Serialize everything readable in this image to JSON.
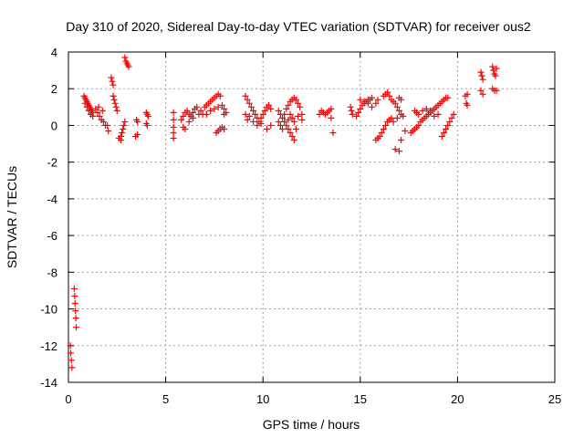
{
  "chart_data": {
    "type": "scatter",
    "title": "Day 310 of 2020, Sidereal Day-to-day VTEC variation (SDTVAR) for receiver ous2",
    "xlabel": "GPS time / hours",
    "ylabel": "SDTVAR / TECUs",
    "xlim": [
      0,
      25
    ],
    "ylim": [
      -14,
      4
    ],
    "xticks": [
      0,
      5,
      10,
      15,
      20,
      25
    ],
    "yticks": [
      -14,
      -12,
      -10,
      -8,
      -6,
      -4,
      -2,
      0,
      2,
      4
    ],
    "grid": true,
    "marker": "+",
    "series": [
      {
        "name": "SDTVAR",
        "color": "#ff0000",
        "points": [
          [
            0.1,
            -12.0
          ],
          [
            0.12,
            -12.4
          ],
          [
            0.15,
            -12.8
          ],
          [
            0.18,
            -13.2
          ],
          [
            0.3,
            -8.9
          ],
          [
            0.32,
            -9.3
          ],
          [
            0.34,
            -9.7
          ],
          [
            0.36,
            -10.1
          ],
          [
            0.38,
            -10.5
          ],
          [
            0.4,
            -11.0
          ],
          [
            0.8,
            1.6
          ],
          [
            0.85,
            1.5
          ],
          [
            0.9,
            1.4
          ],
          [
            0.95,
            1.3
          ],
          [
            1.0,
            1.2
          ],
          [
            1.05,
            1.1
          ],
          [
            1.1,
            1.0
          ],
          [
            1.15,
            0.9
          ],
          [
            1.2,
            0.8
          ],
          [
            1.25,
            0.7
          ],
          [
            0.85,
            1.2
          ],
          [
            0.95,
            1.0
          ],
          [
            1.05,
            0.8
          ],
          [
            1.15,
            0.6
          ],
          [
            1.25,
            0.5
          ],
          [
            1.4,
            0.9
          ],
          [
            1.5,
            0.7
          ],
          [
            1.6,
            0.5
          ],
          [
            1.7,
            0.3
          ],
          [
            1.8,
            0.2
          ],
          [
            1.9,
            0.0
          ],
          [
            1.55,
            1.0
          ],
          [
            1.75,
            0.8
          ],
          [
            2.05,
            -0.3
          ],
          [
            2.0,
            0.0
          ],
          [
            2.2,
            2.6
          ],
          [
            2.25,
            2.4
          ],
          [
            2.3,
            2.2
          ],
          [
            2.3,
            1.6
          ],
          [
            2.35,
            1.4
          ],
          [
            2.4,
            1.2
          ],
          [
            2.45,
            1.0
          ],
          [
            2.5,
            0.8
          ],
          [
            2.6,
            -0.7
          ],
          [
            2.7,
            -0.6
          ],
          [
            2.75,
            -0.4
          ],
          [
            2.8,
            -0.2
          ],
          [
            2.85,
            0.0
          ],
          [
            2.9,
            0.2
          ],
          [
            2.7,
            -0.8
          ],
          [
            2.9,
            3.7
          ],
          [
            2.95,
            3.5
          ],
          [
            3.0,
            3.4
          ],
          [
            3.05,
            3.3
          ],
          [
            3.1,
            3.2
          ],
          [
            3.5,
            0.3
          ],
          [
            3.55,
            0.2
          ],
          [
            3.45,
            -0.6
          ],
          [
            3.55,
            -0.5
          ],
          [
            4.0,
            0.7
          ],
          [
            4.05,
            0.6
          ],
          [
            4.1,
            0.5
          ],
          [
            4.0,
            0.1
          ],
          [
            4.05,
            0.0
          ],
          [
            5.4,
            0.7
          ],
          [
            5.4,
            0.3
          ],
          [
            5.4,
            -0.1
          ],
          [
            5.4,
            -0.4
          ],
          [
            5.4,
            -0.7
          ],
          [
            5.8,
            0.3
          ],
          [
            5.9,
            0.5
          ],
          [
            6.0,
            0.7
          ],
          [
            6.1,
            0.8
          ],
          [
            6.2,
            0.6
          ],
          [
            6.3,
            0.5
          ],
          [
            6.4,
            0.7
          ],
          [
            6.5,
            0.9
          ],
          [
            6.6,
            1.0
          ],
          [
            5.9,
            -0.1
          ],
          [
            6.0,
            -0.2
          ],
          [
            6.2,
            0.2
          ],
          [
            6.4,
            0.4
          ],
          [
            6.7,
            0.6
          ],
          [
            6.8,
            0.8
          ],
          [
            6.9,
            0.6
          ],
          [
            7.0,
            1.0
          ],
          [
            7.1,
            1.1
          ],
          [
            7.2,
            1.2
          ],
          [
            7.3,
            1.3
          ],
          [
            7.4,
            1.4
          ],
          [
            7.5,
            1.5
          ],
          [
            7.6,
            1.6
          ],
          [
            7.7,
            1.7
          ],
          [
            7.8,
            1.6
          ],
          [
            7.1,
            0.6
          ],
          [
            7.3,
            0.8
          ],
          [
            7.5,
            0.9
          ],
          [
            7.7,
            1.0
          ],
          [
            7.9,
            1.1
          ],
          [
            8.0,
            0.9
          ],
          [
            7.6,
            -0.4
          ],
          [
            7.7,
            -0.3
          ],
          [
            7.8,
            -0.2
          ],
          [
            7.9,
            -0.1
          ],
          [
            8.0,
            -0.2
          ],
          [
            8.0,
            0.6
          ],
          [
            8.1,
            0.7
          ],
          [
            9.1,
            1.6
          ],
          [
            9.2,
            1.4
          ],
          [
            9.3,
            1.2
          ],
          [
            9.4,
            1.0
          ],
          [
            9.5,
            0.8
          ],
          [
            9.6,
            0.6
          ],
          [
            9.7,
            0.4
          ],
          [
            9.8,
            0.2
          ],
          [
            9.9,
            0.4
          ],
          [
            9.1,
            0.6
          ],
          [
            9.2,
            0.3
          ],
          [
            9.3,
            0.5
          ],
          [
            9.5,
            0.2
          ],
          [
            9.7,
            0.0
          ],
          [
            9.9,
            0.1
          ],
          [
            10.0,
            0.6
          ],
          [
            10.1,
            0.8
          ],
          [
            10.2,
            1.0
          ],
          [
            10.3,
            1.1
          ],
          [
            10.4,
            0.9
          ],
          [
            10.2,
            -0.2
          ],
          [
            10.4,
            0.0
          ],
          [
            10.8,
            0.8
          ],
          [
            10.9,
            0.6
          ],
          [
            11.0,
            0.4
          ],
          [
            11.1,
            0.2
          ],
          [
            11.2,
            0.0
          ],
          [
            11.3,
            -0.2
          ],
          [
            11.4,
            -0.4
          ],
          [
            11.5,
            -0.6
          ],
          [
            11.6,
            -0.8
          ],
          [
            10.8,
            0.2
          ],
          [
            10.9,
            0.0
          ],
          [
            11.0,
            -0.2
          ],
          [
            11.1,
            0.6
          ],
          [
            11.2,
            0.9
          ],
          [
            11.3,
            1.1
          ],
          [
            11.4,
            1.3
          ],
          [
            11.5,
            1.4
          ],
          [
            11.6,
            1.5
          ],
          [
            11.7,
            1.4
          ],
          [
            11.8,
            1.2
          ],
          [
            11.9,
            1.0
          ],
          [
            12.0,
            0.6
          ],
          [
            12.0,
            0.3
          ],
          [
            11.5,
            0.4
          ],
          [
            11.6,
            0.2
          ],
          [
            11.7,
            -0.2
          ],
          [
            11.8,
            0.5
          ],
          [
            11.4,
            0.6
          ],
          [
            11.3,
            0.3
          ],
          [
            12.9,
            0.6
          ],
          [
            13.0,
            0.8
          ],
          [
            13.1,
            0.7
          ],
          [
            13.2,
            0.6
          ],
          [
            13.3,
            0.7
          ],
          [
            13.4,
            0.8
          ],
          [
            13.5,
            0.9
          ],
          [
            13.5,
            0.4
          ],
          [
            13.6,
            -0.4
          ],
          [
            14.5,
            1.0
          ],
          [
            14.55,
            0.8
          ],
          [
            14.6,
            0.6
          ],
          [
            14.8,
            0.5
          ],
          [
            14.9,
            0.7
          ],
          [
            15.0,
            0.9
          ],
          [
            15.1,
            1.1
          ],
          [
            15.2,
            1.2
          ],
          [
            15.3,
            1.3
          ],
          [
            15.4,
            1.4
          ],
          [
            15.5,
            1.4
          ],
          [
            15.6,
            1.5
          ],
          [
            15.0,
            1.4
          ],
          [
            15.2,
            1.3
          ],
          [
            15.4,
            1.2
          ],
          [
            15.6,
            1.0
          ],
          [
            15.8,
            1.2
          ],
          [
            15.9,
            1.4
          ],
          [
            16.2,
            1.6
          ],
          [
            16.3,
            1.7
          ],
          [
            16.4,
            1.8
          ],
          [
            16.5,
            1.6
          ],
          [
            16.6,
            1.4
          ],
          [
            16.7,
            1.3
          ],
          [
            16.8,
            1.2
          ],
          [
            16.9,
            1.0
          ],
          [
            17.0,
            0.8
          ],
          [
            17.1,
            0.6
          ],
          [
            15.8,
            -0.8
          ],
          [
            15.9,
            -0.7
          ],
          [
            16.0,
            -0.6
          ],
          [
            16.1,
            -0.4
          ],
          [
            16.2,
            -0.2
          ],
          [
            16.3,
            0.0
          ],
          [
            16.4,
            0.2
          ],
          [
            16.5,
            0.3
          ],
          [
            16.6,
            0.4
          ],
          [
            16.8,
            -1.3
          ],
          [
            17.0,
            -1.4
          ],
          [
            17.1,
            -0.8
          ],
          [
            17.3,
            -0.3
          ],
          [
            16.7,
            0.2
          ],
          [
            16.9,
            0.4
          ],
          [
            17.2,
            0.5
          ],
          [
            17.0,
            1.5
          ],
          [
            17.1,
            1.4
          ],
          [
            17.6,
            -0.4
          ],
          [
            17.7,
            -0.3
          ],
          [
            17.8,
            -0.2
          ],
          [
            17.9,
            -0.1
          ],
          [
            18.0,
            0.0
          ],
          [
            18.1,
            0.2
          ],
          [
            18.2,
            0.3
          ],
          [
            18.3,
            0.4
          ],
          [
            18.4,
            0.5
          ],
          [
            18.5,
            0.6
          ],
          [
            18.6,
            0.7
          ],
          [
            18.7,
            0.8
          ],
          [
            18.8,
            0.9
          ],
          [
            18.9,
            1.0
          ],
          [
            19.0,
            1.1
          ],
          [
            19.1,
            1.2
          ],
          [
            19.2,
            1.3
          ],
          [
            19.3,
            1.4
          ],
          [
            19.4,
            1.5
          ],
          [
            19.5,
            1.5
          ],
          [
            17.8,
            0.8
          ],
          [
            17.9,
            0.7
          ],
          [
            18.0,
            0.6
          ],
          [
            18.2,
            0.8
          ],
          [
            18.4,
            0.9
          ],
          [
            18.6,
            0.8
          ],
          [
            18.8,
            0.5
          ],
          [
            19.0,
            0.6
          ],
          [
            19.2,
            -0.6
          ],
          [
            19.3,
            -0.4
          ],
          [
            19.4,
            -0.2
          ],
          [
            19.5,
            0.0
          ],
          [
            19.6,
            0.2
          ],
          [
            19.7,
            0.4
          ],
          [
            19.8,
            0.6
          ],
          [
            20.4,
            1.6
          ],
          [
            20.5,
            1.7
          ],
          [
            20.45,
            1.2
          ],
          [
            20.5,
            1.1
          ],
          [
            21.2,
            2.9
          ],
          [
            21.25,
            2.7
          ],
          [
            21.3,
            2.5
          ],
          [
            21.2,
            1.9
          ],
          [
            21.3,
            1.7
          ],
          [
            21.8,
            3.2
          ],
          [
            21.85,
            3.0
          ],
          [
            21.9,
            2.8
          ],
          [
            21.95,
            2.7
          ],
          [
            22.0,
            3.1
          ],
          [
            21.8,
            2.0
          ],
          [
            21.9,
            1.9
          ],
          [
            22.0,
            1.9
          ]
        ]
      }
    ]
  }
}
